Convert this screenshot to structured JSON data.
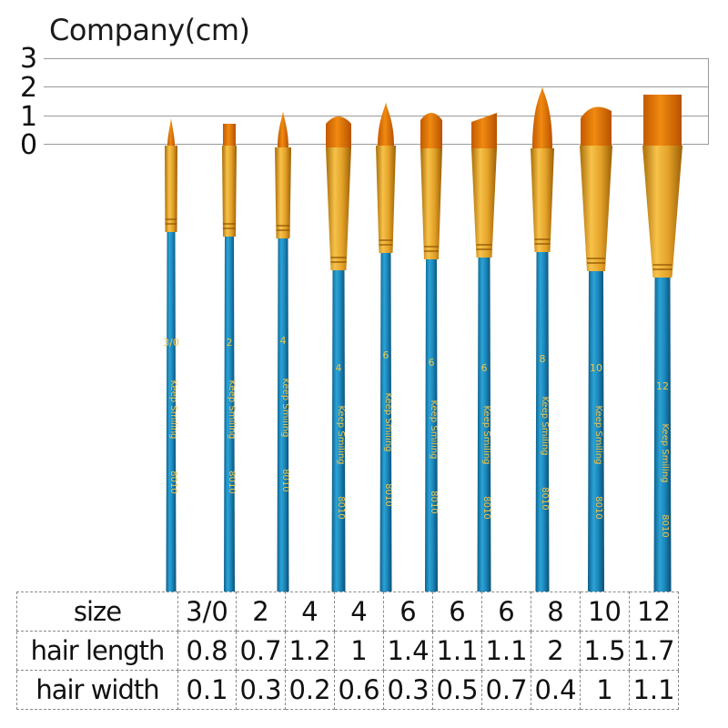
{
  "header": {
    "title": "Company(cm)"
  },
  "ruler": {
    "marks": [
      "3",
      "2",
      "1",
      "0"
    ]
  },
  "brushes": [
    {
      "size_label": "3/0",
      "brand": "Keep Smiling",
      "code": "8010",
      "tip": "round"
    },
    {
      "size_label": "2",
      "brand": "Keep Smiling",
      "code": "8010",
      "tip": "flat"
    },
    {
      "size_label": "4",
      "brand": "Keep Smiling",
      "code": "8010",
      "tip": "round"
    },
    {
      "size_label": "4",
      "brand": "Keep Smiling",
      "code": "8010",
      "tip": "filbert"
    },
    {
      "size_label": "6",
      "brand": "Keep Smiling",
      "code": "8010",
      "tip": "round"
    },
    {
      "size_label": "6",
      "brand": "Keep Smiling",
      "code": "8010",
      "tip": "filbert"
    },
    {
      "size_label": "6",
      "brand": "Keep Smiling",
      "code": "8010",
      "tip": "angle"
    },
    {
      "size_label": "8",
      "brand": "Keep Smiling",
      "code": "8010",
      "tip": "round"
    },
    {
      "size_label": "10",
      "brand": "Keep Smiling",
      "code": "8010",
      "tip": "fan-filbert"
    },
    {
      "size_label": "12",
      "brand": "Keep Smiling",
      "code": "8010",
      "tip": "flat"
    }
  ],
  "colors": {
    "handle": "#1f8fc4",
    "ferrule": "#e0a020",
    "hair": "#e57a00"
  },
  "table": {
    "rows": [
      {
        "label": "size",
        "values": [
          "3/0",
          "2",
          "4",
          "4",
          "6",
          "6",
          "6",
          "8",
          "10",
          "12"
        ]
      },
      {
        "label": "hair length",
        "values": [
          "0.8",
          "0.7",
          "1.2",
          "1",
          "1.4",
          "1.1",
          "1.1",
          "2",
          "1.5",
          "1.7"
        ]
      },
      {
        "label": "hair width",
        "values": [
          "0.1",
          "0.3",
          "0.2",
          "0.6",
          "0.3",
          "0.5",
          "0.7",
          "0.4",
          "1",
          "1.1"
        ]
      }
    ]
  }
}
